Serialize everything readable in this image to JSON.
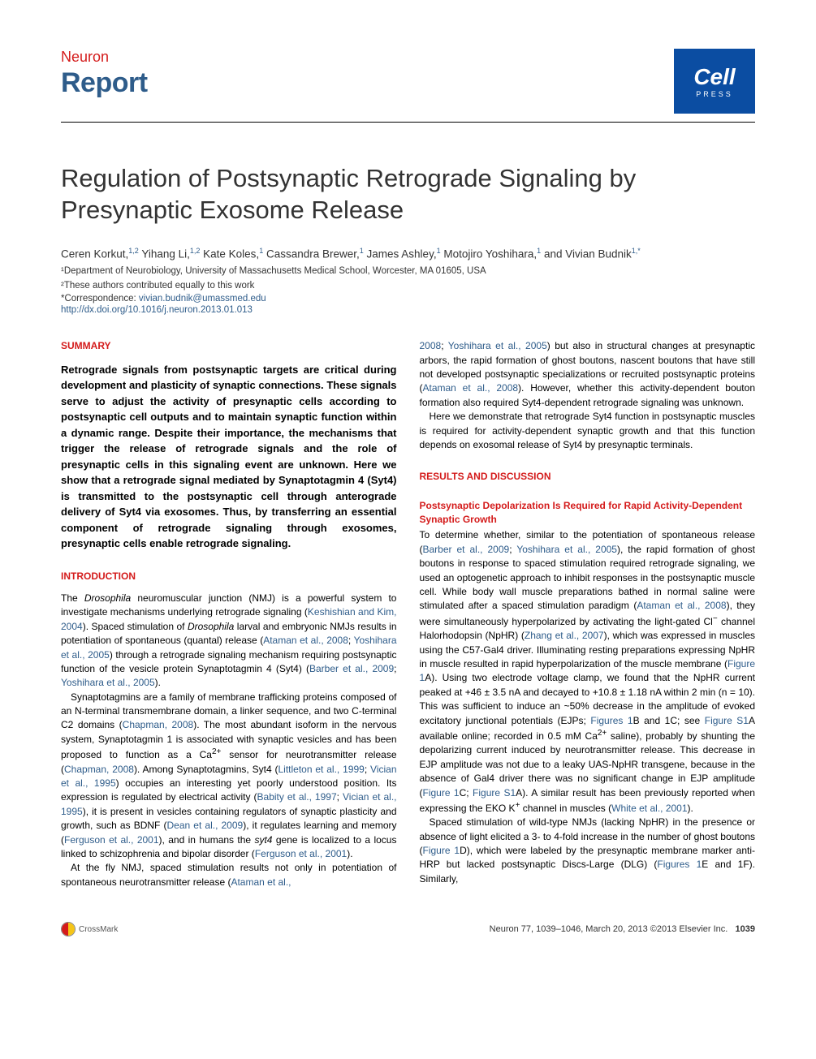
{
  "header": {
    "journal": "Neuron",
    "doctype": "Report",
    "logo_text": "Cell",
    "logo_sub": "PRESS",
    "logo_bg": "#0b4da2"
  },
  "title": "Regulation of Postsynaptic Retrograde Signaling by Presynaptic Exosome Release",
  "authors_html": "Ceren Korkut,<sup>1,2</sup> Yihang Li,<sup>1,2</sup> Kate Koles,<sup>1</sup> Cassandra Brewer,<sup>1</sup> James Ashley,<sup>1</sup> Motojiro Yoshihara,<sup>1</sup> and Vivian Budnik<sup>1,*</sup>",
  "affiliations": [
    "¹Department of Neurobiology, University of Massachusetts Medical School, Worcester, MA 01605, USA",
    "²These authors contributed equally to this work"
  ],
  "correspondence_label": "*Correspondence: ",
  "correspondence_email": "vivian.budnik@umassmed.edu",
  "doi": "http://dx.doi.org/10.1016/j.neuron.2013.01.013",
  "colors": {
    "accent_red": "#d41b1b",
    "link_blue": "#2e5c8a"
  },
  "left_column": {
    "summary_head": "SUMMARY",
    "summary_text": "Retrograde signals from postsynaptic targets are critical during development and plasticity of synaptic connections. These signals serve to adjust the activity of presynaptic cells according to postsynaptic cell outputs and to maintain synaptic function within a dynamic range. Despite their importance, the mechanisms that trigger the release of retrograde signals and the role of presynaptic cells in this signaling event are unknown. Here we show that a retrograde signal mediated by Synaptotagmin 4 (Syt4) is transmitted to the postsynaptic cell through anterograde delivery of Syt4 via exosomes. Thus, by transferring an essential component of retrograde signaling through exosomes, presynaptic cells enable retrograde signaling.",
    "intro_head": "INTRODUCTION",
    "intro_p1": "The <span class=\"italic\">Drosophila</span> neuromuscular junction (NMJ) is a powerful system to investigate mechanisms underlying retrograde signaling (<a class=\"cite\">Keshishian and Kim, 2004</a>). Spaced stimulation of <span class=\"italic\">Drosophila</span> larval and embryonic NMJs results in potentiation of spontaneous (quantal) release (<a class=\"cite\">Ataman et al., 2008</a>; <a class=\"cite\">Yoshihara et al., 2005</a>) through a retrograde signaling mechanism requiring postsynaptic function of the vesicle protein Synaptotagmin 4 (Syt4) (<a class=\"cite\">Barber et al., 2009</a>; <a class=\"cite\">Yoshihara et al., 2005</a>).",
    "intro_p2": "Synaptotagmins are a family of membrane trafficking proteins composed of an N-terminal transmembrane domain, a linker sequence, and two C-terminal C2 domains (<a class=\"cite\">Chapman, 2008</a>). The most abundant isoform in the nervous system, Synaptotagmin 1 is associated with synaptic vesicles and has been proposed to function as a Ca<sup>2+</sup> sensor for neurotransmitter release (<a class=\"cite\">Chapman, 2008</a>). Among Synaptotagmins, Syt4 (<a class=\"cite\">Littleton et al., 1999</a>; <a class=\"cite\">Vician et al., 1995</a>) occupies an interesting yet poorly understood position. Its expression is regulated by electrical activity (<a class=\"cite\">Babity et al., 1997</a>; <a class=\"cite\">Vician et al., 1995</a>), it is present in vesicles containing regulators of synaptic plasticity and growth, such as BDNF (<a class=\"cite\">Dean et al., 2009</a>), it regulates learning and memory (<a class=\"cite\">Ferguson et al., 2001</a>), and in humans the <span class=\"italic\">syt4</span> gene is localized to a locus linked to schizophrenia and bipolar disorder (<a class=\"cite\">Ferguson et al., 2001</a>).",
    "intro_p3": "At the fly NMJ, spaced stimulation results not only in potentiation of spontaneous neurotransmitter release (<a class=\"cite\">Ataman et al.,</a>"
  },
  "right_column": {
    "cont_p1": "<a class=\"cite\">2008</a>; <a class=\"cite\">Yoshihara et al., 2005</a>) but also in structural changes at presynaptic arbors, the rapid formation of ghost boutons, nascent boutons that have still not developed postsynaptic specializations or recruited postsynaptic proteins (<a class=\"cite\">Ataman et al., 2008</a>). However, whether this activity-dependent bouton formation also required Syt4-dependent retrograde signaling was unknown.",
    "cont_p2": "Here we demonstrate that retrograde Syt4 function in postsynaptic muscles is required for activity-dependent synaptic growth and that this function depends on exosomal release of Syt4 by presynaptic terminals.",
    "results_head": "RESULTS AND DISCUSSION",
    "sub1_head": "Postsynaptic Depolarization Is Required for Rapid Activity-Dependent Synaptic Growth",
    "results_p1": "To determine whether, similar to the potentiation of spontaneous release (<a class=\"cite\">Barber et al., 2009</a>; <a class=\"cite\">Yoshihara et al., 2005</a>), the rapid formation of ghost boutons in response to spaced stimulation required retrograde signaling, we used an optogenetic approach to inhibit responses in the postsynaptic muscle cell. While body wall muscle preparations bathed in normal saline were stimulated after a spaced stimulation paradigm (<a class=\"cite\">Ataman et al., 2008</a>), they were simultaneously hyperpolarized by activating the light-gated Cl<sup>−</sup> channel Halorhodopsin (NpHR) (<a class=\"cite\">Zhang et al., 2007</a>), which was expressed in muscles using the C57-Gal4 driver. Illuminating resting preparations expressing NpHR in muscle resulted in rapid hyperpolarization of the muscle membrane (<a class=\"figref\">Figure 1</a>A). Using two electrode voltage clamp, we found that the NpHR current peaked at +46 ± 3.5 nA and decayed to +10.8 ± 1.18 nA within 2 min (n = 10). This was sufficient to induce an ~50% decrease in the amplitude of evoked excitatory junctional potentials (EJPs; <a class=\"figref\">Figures 1</a>B and 1C; see <a class=\"figref\">Figure S1</a>A available online; recorded in 0.5 mM Ca<sup>2+</sup> saline), probably by shunting the depolarizing current induced by neurotransmitter release. This decrease in EJP amplitude was not due to a leaky UAS-NpHR transgene, because in the absence of Gal4 driver there was no significant change in EJP amplitude (<a class=\"figref\">Figure 1</a>C; <a class=\"figref\">Figure S1</a>A). A similar result has been previously reported when expressing the EKO K<sup>+</sup> channel in muscles (<a class=\"cite\">White et al., 2001</a>).",
    "results_p2": "Spaced stimulation of wild-type NMJs (lacking NpHR) in the presence or absence of light elicited a 3- to 4-fold increase in the number of ghost boutons (<a class=\"figref\">Figure 1</a>D), which were labeled by the presynaptic membrane marker anti-HRP but lacked postsynaptic Discs-Large (DLG) (<a class=\"figref\">Figures 1</a>E and 1F). Similarly,"
  },
  "footer": {
    "crossmark": "CrossMark",
    "citation": "Neuron 77, 1039–1046, March 20, 2013 ©2013 Elsevier Inc.",
    "page": "1039"
  }
}
